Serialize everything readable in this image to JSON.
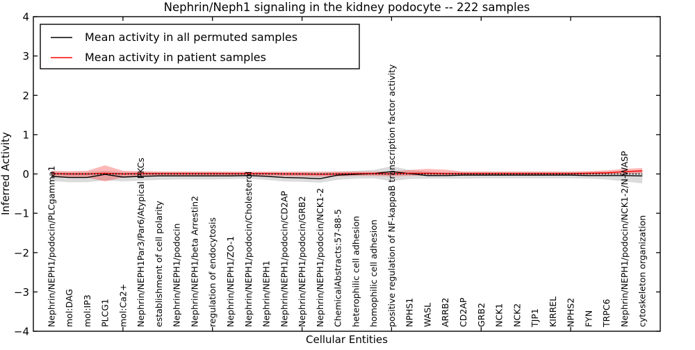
{
  "figure": {
    "title": "Nephrin/Neph1 signaling in the kidney podocyte -- 222 samples",
    "xlabel": "Cellular Entities",
    "ylabel": "Inferred Activity"
  },
  "legend": {
    "position": "upper left",
    "entries": [
      {
        "label": "Mean activity in all permuted samples",
        "color": "#000000"
      },
      {
        "label": "Mean activity in patient samples",
        "color": "#ff0000"
      }
    ]
  },
  "chart_data": {
    "type": "line",
    "title": "Nephrin/Neph1 signaling in the kidney podocyte -- 222 samples",
    "xlabel": "Cellular Entities",
    "ylabel": "Inferred Activity",
    "ylim": [
      -4,
      4
    ],
    "yticks": [
      4,
      3,
      2,
      1,
      0,
      -1,
      -2,
      -3,
      -4
    ],
    "ytick_labels": [
      "4",
      "3",
      "2",
      "1",
      "0",
      "−1",
      "−2",
      "−3",
      "−4"
    ],
    "x_major_ticks_at_entity": [
      5,
      10,
      15,
      20,
      25,
      30
    ],
    "grid": false,
    "zero_reference_line": {
      "y": 0,
      "style": "dotted",
      "color": "#000000"
    },
    "categories": [
      "Nephrin/NEPH1/podocin/PLCgamma1",
      "mol:DAG",
      "mol:IP3",
      "PLCG1",
      "mol:Ca2+",
      "Nephrin/NEPH1Par3/Par6/Atypical PKCs",
      "establishment of cell polarity",
      "Nephrin/NEPH1/podocin",
      "Nephrin/NEPH1/beta Arrestin2",
      "regulation of endocytosis",
      "Nephrin/NEPH1/ZO-1",
      "Nephrin/NEPH1/podocin/Cholesterol",
      "Nephrin/NEPH1",
      "Nephrin/NEPH1/podocin/CD2AP",
      "Nephrin/NEPH1/podocin/GRB2",
      "Nephrin/NEPH1/podocin/NCK1-2",
      "ChemicalAbstracts:57-88-5",
      "heterophilic cell adhesion",
      "homophilic cell adhesion",
      "positive regulation of NF-kappaB transcription factor activity",
      "NPHS1",
      "WASL",
      "ARRB2",
      "CD2AP",
      "GRB2",
      "NCK1",
      "NCK2",
      "TJP1",
      "KIRREL",
      "NPHS2",
      "FYN",
      "TRPC6",
      "Nephrin/NEPH1/podocin/NCK1-2/N-WASP",
      "cytoskeleton organization"
    ],
    "series": [
      {
        "name": "Mean activity in all permuted samples",
        "color": "#000000",
        "band_color": "rgba(0,0,0,0.14)",
        "values": [
          -0.06,
          -0.09,
          -0.09,
          -0.01,
          -0.08,
          -0.06,
          -0.05,
          -0.05,
          -0.05,
          -0.05,
          -0.05,
          -0.04,
          -0.06,
          -0.09,
          -0.1,
          -0.12,
          -0.03,
          -0.01,
          0.01,
          0.06,
          0.01,
          -0.04,
          -0.04,
          -0.03,
          -0.03,
          -0.03,
          -0.03,
          -0.03,
          -0.03,
          -0.03,
          -0.04,
          -0.04,
          -0.04,
          -0.05
        ],
        "band_upper": [
          0.06,
          0.05,
          0.05,
          0.08,
          0.05,
          0.05,
          0.05,
          0.05,
          0.05,
          0.05,
          0.04,
          0.04,
          0.04,
          0.04,
          0.04,
          0.04,
          0.06,
          0.08,
          0.1,
          0.2,
          0.1,
          0.06,
          0.05,
          0.05,
          0.05,
          0.05,
          0.05,
          0.05,
          0.05,
          0.05,
          0.05,
          0.06,
          0.06,
          0.07
        ],
        "band_lower": [
          -0.18,
          -0.21,
          -0.21,
          -0.16,
          -0.19,
          -0.17,
          -0.15,
          -0.14,
          -0.14,
          -0.14,
          -0.13,
          -0.12,
          -0.15,
          -0.19,
          -0.2,
          -0.22,
          -0.15,
          -0.12,
          -0.11,
          -0.18,
          -0.13,
          -0.12,
          -0.12,
          -0.12,
          -0.11,
          -0.11,
          -0.11,
          -0.11,
          -0.11,
          -0.11,
          -0.12,
          -0.14,
          -0.19,
          -0.24
        ]
      },
      {
        "name": "Mean activity in patient samples",
        "color": "#ff0000",
        "band_color": "rgba(255,0,0,0.28)",
        "values": [
          0.01,
          0.0,
          0.0,
          0.02,
          0.0,
          0.01,
          0.01,
          0.01,
          0.01,
          0.01,
          0.01,
          0.01,
          0.01,
          0.0,
          0.0,
          -0.01,
          0.0,
          0.01,
          0.01,
          0.0,
          0.02,
          0.02,
          0.01,
          0.01,
          0.01,
          0.01,
          0.01,
          0.01,
          0.01,
          0.01,
          0.02,
          0.03,
          0.06,
          0.08
        ],
        "band_upper": [
          0.08,
          0.07,
          0.08,
          0.22,
          0.08,
          0.07,
          0.06,
          0.06,
          0.06,
          0.06,
          0.06,
          0.06,
          0.06,
          0.06,
          0.06,
          0.06,
          0.06,
          0.06,
          0.06,
          0.06,
          0.1,
          0.13,
          0.11,
          0.06,
          0.06,
          0.06,
          0.06,
          0.06,
          0.06,
          0.06,
          0.07,
          0.09,
          0.13,
          0.15
        ],
        "band_lower": [
          -0.07,
          -0.08,
          -0.09,
          -0.19,
          -0.09,
          -0.06,
          -0.05,
          -0.05,
          -0.05,
          -0.05,
          -0.05,
          -0.05,
          -0.05,
          -0.06,
          -0.06,
          -0.07,
          -0.06,
          -0.05,
          -0.05,
          -0.06,
          -0.05,
          -0.04,
          -0.04,
          -0.04,
          -0.04,
          -0.04,
          -0.04,
          -0.04,
          -0.04,
          -0.03,
          -0.02,
          -0.01,
          0.0,
          0.02
        ]
      }
    ]
  }
}
